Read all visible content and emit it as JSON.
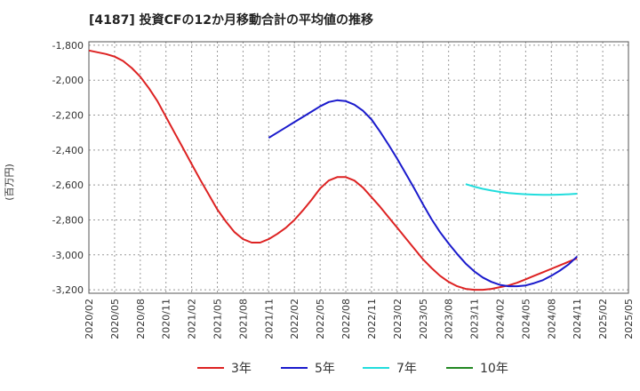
{
  "chart_data": {
    "type": "line",
    "title": "[4187]  投資CFの12か月移動合計の平均値の推移",
    "ylabel": "(百万円)",
    "xlabel": "",
    "ylim": [
      -3220,
      -1780
    ],
    "yticks": [
      -1800,
      -2000,
      -2200,
      -2400,
      -2600,
      -2800,
      -3000,
      -3200
    ],
    "ytick_labels": [
      "-1,800",
      "-2,000",
      "-2,200",
      "-2,400",
      "-2,600",
      "-2,800",
      "-3,000",
      "-3,200"
    ],
    "xticks": [
      "2020/02",
      "2020/05",
      "2020/08",
      "2020/11",
      "2021/02",
      "2021/05",
      "2021/08",
      "2021/11",
      "2022/02",
      "2022/05",
      "2022/08",
      "2022/11",
      "2023/02",
      "2023/05",
      "2023/08",
      "2023/11",
      "2024/02",
      "2024/05",
      "2024/08",
      "2024/11",
      "2025/02",
      "2025/05"
    ],
    "grid": true,
    "legend_position": "bottom",
    "series": [
      {
        "name": "3年",
        "color": "#dd2222",
        "start": "2020/02",
        "values": [
          -1830,
          -1840,
          -1850,
          -1865,
          -1890,
          -1930,
          -1980,
          -2045,
          -2120,
          -2210,
          -2300,
          -2390,
          -2480,
          -2570,
          -2655,
          -2740,
          -2810,
          -2870,
          -2910,
          -2930,
          -2930,
          -2910,
          -2880,
          -2845,
          -2800,
          -2745,
          -2685,
          -2620,
          -2575,
          -2555,
          -2555,
          -2575,
          -2615,
          -2670,
          -2725,
          -2785,
          -2845,
          -2905,
          -2965,
          -3025,
          -3075,
          -3120,
          -3155,
          -3180,
          -3195,
          -3200,
          -3200,
          -3195,
          -3185,
          -3175,
          -3160,
          -3140,
          -3120,
          -3100,
          -3080,
          -3060,
          -3040,
          -3020
        ]
      },
      {
        "name": "5年",
        "color": "#1a1acc",
        "start": "2021/11",
        "values": [
          -2330,
          -2300,
          -2270,
          -2240,
          -2210,
          -2180,
          -2150,
          -2125,
          -2115,
          -2120,
          -2140,
          -2175,
          -2225,
          -2295,
          -2370,
          -2450,
          -2535,
          -2620,
          -2710,
          -2795,
          -2870,
          -2935,
          -2995,
          -3050,
          -3095,
          -3130,
          -3155,
          -3172,
          -3180,
          -3180,
          -3175,
          -3162,
          -3145,
          -3120,
          -3090,
          -3055,
          -3010
        ]
      },
      {
        "name": "7年",
        "color": "#22dddd",
        "start": "2023/10",
        "values": [
          -2595,
          -2610,
          -2622,
          -2632,
          -2640,
          -2646,
          -2650,
          -2653,
          -2655,
          -2656,
          -2656,
          -2655,
          -2653,
          -2650
        ]
      },
      {
        "name": "10年",
        "color": "#228822",
        "start": "2023/10",
        "values": []
      }
    ]
  }
}
